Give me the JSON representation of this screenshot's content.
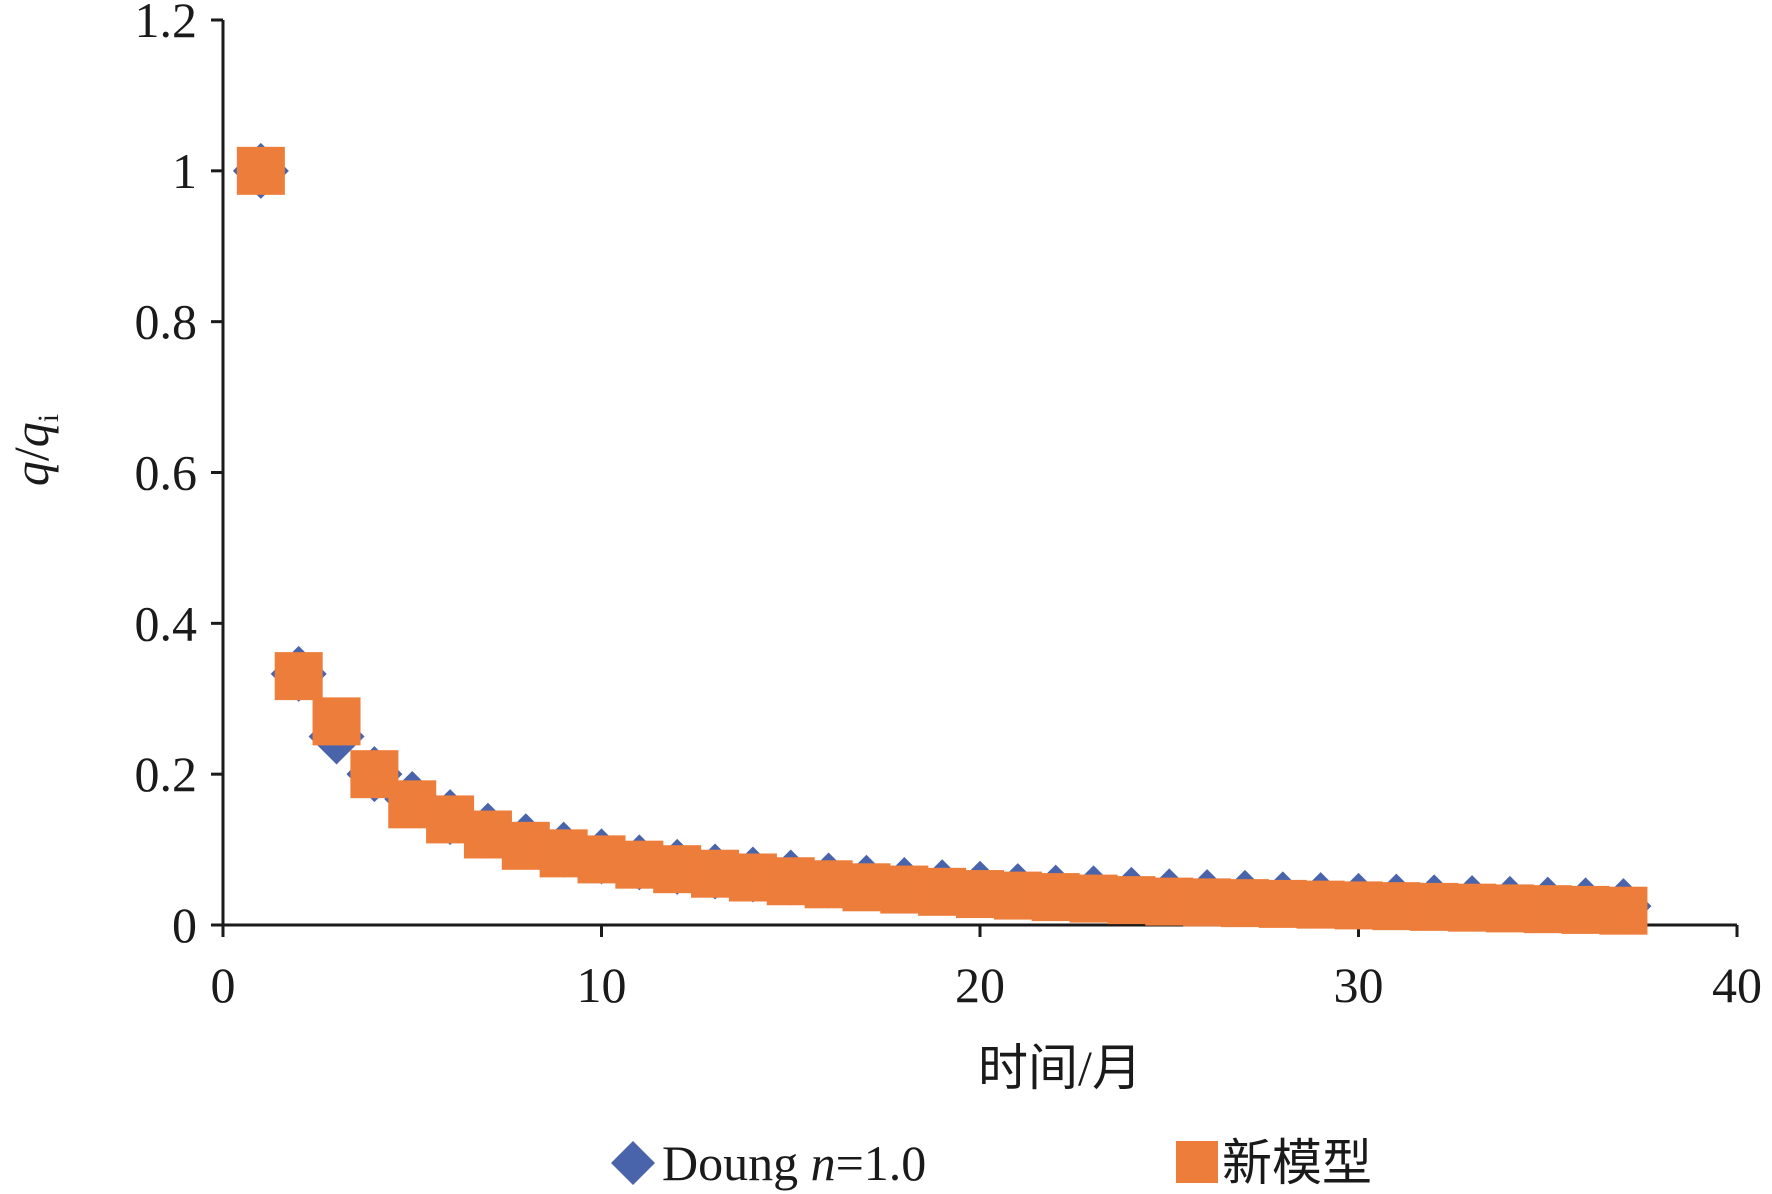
{
  "chart_data": {
    "type": "scatter",
    "title": "",
    "xlabel": "时间/月",
    "ylabel": {
      "q1": "q",
      "slash": "/",
      "q2": "q",
      "sub": "i"
    },
    "xlim": [
      0,
      40
    ],
    "ylim": [
      0,
      1.2
    ],
    "x_ticks": [
      0,
      10,
      20,
      30,
      40
    ],
    "x_tick_labels": [
      "0",
      "10",
      "20",
      "30",
      "40"
    ],
    "y_ticks": [
      0,
      0.2,
      0.4,
      0.6,
      0.8,
      1.0,
      1.2
    ],
    "y_tick_labels": [
      "0",
      "0.2",
      "0.4",
      "0.6",
      "0.8",
      "1",
      "1.2"
    ],
    "grid": false,
    "legend_position": "bottom",
    "series": [
      {
        "name": "Doung n=1.0",
        "legend": {
          "prefix": "Doung ",
          "italic": "n",
          "suffix": "=1.0"
        },
        "marker": "diamond",
        "color": "#4A64AC",
        "x": [
          1,
          2,
          3,
          4,
          5,
          6,
          7,
          8,
          9,
          10,
          11,
          12,
          13,
          14,
          15,
          16,
          17,
          18,
          19,
          20,
          21,
          22,
          23,
          24,
          25,
          26,
          27,
          28,
          29,
          30,
          31,
          32,
          33,
          34,
          35,
          36,
          37
        ],
        "y": [
          1.0,
          0.333,
          0.25,
          0.2,
          0.167,
          0.143,
          0.125,
          0.111,
          0.1,
          0.091,
          0.083,
          0.077,
          0.071,
          0.067,
          0.063,
          0.059,
          0.056,
          0.053,
          0.05,
          0.048,
          0.045,
          0.043,
          0.042,
          0.04,
          0.038,
          0.037,
          0.036,
          0.034,
          0.033,
          0.032,
          0.031,
          0.03,
          0.029,
          0.028,
          0.027,
          0.026,
          0.025
        ]
      },
      {
        "name": "新模型",
        "legend": {
          "prefix": "新模型",
          "italic": "",
          "suffix": ""
        },
        "marker": "square",
        "color": "#ED7D3A",
        "x": [
          1,
          2,
          3,
          4,
          5,
          6,
          7,
          8,
          9,
          10,
          11,
          12,
          13,
          14,
          15,
          16,
          17,
          18,
          19,
          20,
          21,
          22,
          23,
          24,
          25,
          26,
          27,
          28,
          29,
          30,
          31,
          32,
          33,
          34,
          35,
          36,
          37
        ],
        "y": [
          1.0,
          0.33,
          0.27,
          0.2,
          0.16,
          0.14,
          0.12,
          0.105,
          0.095,
          0.087,
          0.08,
          0.074,
          0.068,
          0.063,
          0.058,
          0.054,
          0.05,
          0.047,
          0.044,
          0.041,
          0.039,
          0.037,
          0.035,
          0.033,
          0.031,
          0.03,
          0.029,
          0.028,
          0.027,
          0.026,
          0.025,
          0.024,
          0.023,
          0.022,
          0.021,
          0.02,
          0.019
        ]
      }
    ]
  }
}
